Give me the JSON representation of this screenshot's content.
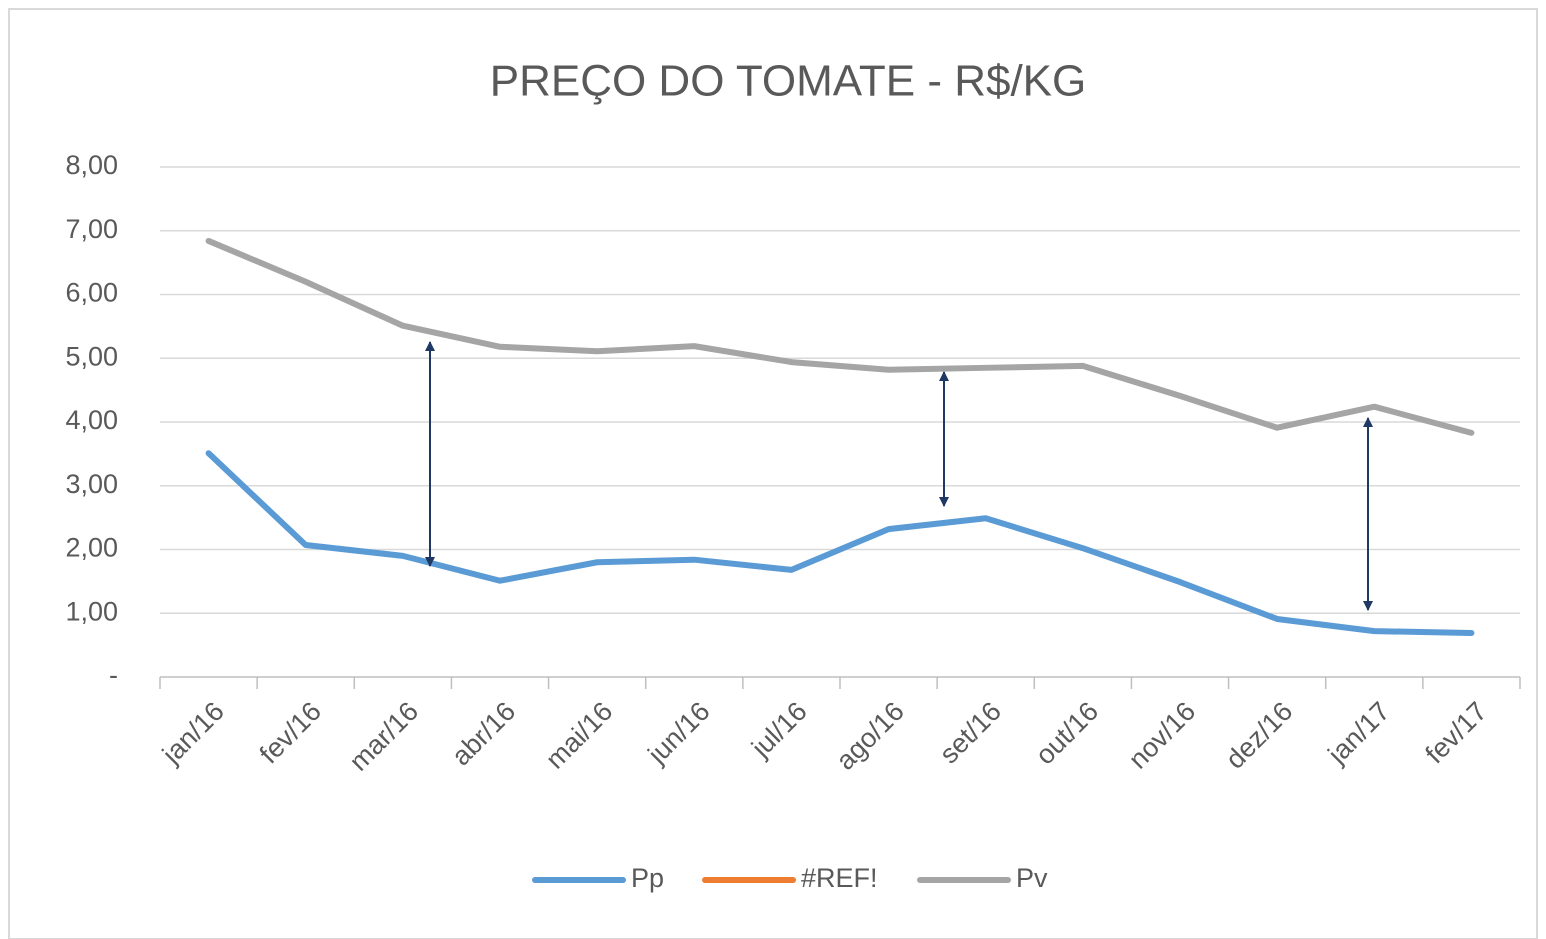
{
  "chart_data": {
    "type": "line",
    "title": "PREÇO DO TOMATE - R$/KG",
    "categories": [
      "jan/16",
      "fev/16",
      "mar/16",
      "abr/16",
      "mai/16",
      "jun/16",
      "jul/16",
      "ago/16",
      "set/16",
      "out/16",
      "nov/16",
      "dez/16",
      "jan/17",
      "fev/17"
    ],
    "series": [
      {
        "name": "Pp",
        "color": "#5b9bd5",
        "values": [
          3.51,
          2.07,
          1.9,
          1.51,
          1.8,
          1.84,
          1.68,
          2.32,
          2.49,
          2.02,
          1.49,
          0.91,
          0.72,
          0.69
        ]
      },
      {
        "name": "#REF!",
        "color": "#ed7d31",
        "values": [
          null,
          null,
          null,
          null,
          null,
          null,
          null,
          null,
          null,
          null,
          null,
          null,
          null,
          null
        ]
      },
      {
        "name": "Pv",
        "color": "#a5a5a5",
        "values": [
          6.84,
          6.2,
          5.51,
          5.18,
          5.11,
          5.19,
          4.94,
          4.82,
          4.85,
          4.88,
          4.41,
          3.91,
          4.24,
          3.83
        ]
      }
    ],
    "ylim": [
      0,
      8
    ],
    "yticks": [
      {
        "value": 0,
        "label": "-"
      },
      {
        "value": 1,
        "label": "1,00"
      },
      {
        "value": 2,
        "label": "2,00"
      },
      {
        "value": 3,
        "label": "3,00"
      },
      {
        "value": 4,
        "label": "4,00"
      },
      {
        "value": 5,
        "label": "5,00"
      },
      {
        "value": 6,
        "label": "6,00"
      },
      {
        "value": 7,
        "label": "7,00"
      },
      {
        "value": 8,
        "label": "8,00"
      }
    ],
    "grid": true,
    "legend": "bottom"
  }
}
